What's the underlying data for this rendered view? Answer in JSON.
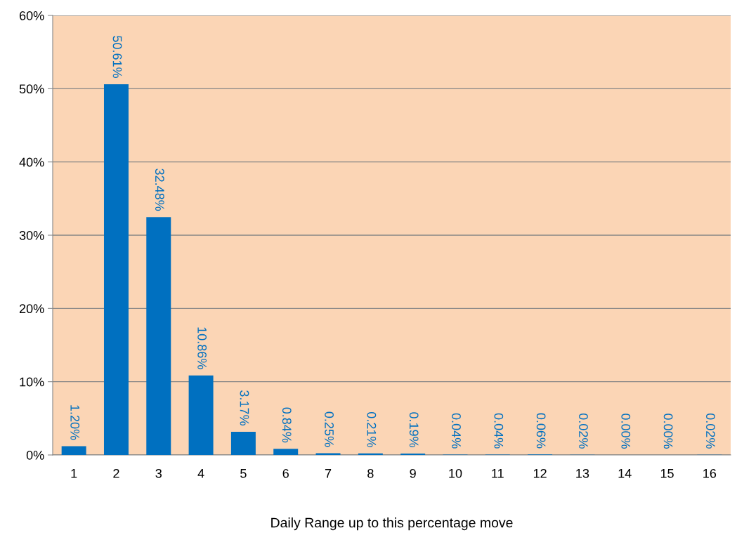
{
  "chart_data": {
    "type": "bar",
    "xlabel": "Daily Range up to this percentage move",
    "categories": [
      "1",
      "2",
      "3",
      "4",
      "5",
      "6",
      "7",
      "8",
      "9",
      "10",
      "11",
      "12",
      "13",
      "14",
      "15",
      "16"
    ],
    "values": [
      1.2,
      50.61,
      32.48,
      10.86,
      3.17,
      0.84,
      0.25,
      0.21,
      0.19,
      0.04,
      0.04,
      0.06,
      0.02,
      0.0,
      0.0,
      0.02
    ],
    "value_labels": [
      "1.20%",
      "50.61%",
      "32.48%",
      "10.86%",
      "3.17%",
      "0.84%",
      "0.25%",
      "0.21%",
      "0.19%",
      "0.04%",
      "0.04%",
      "0.06%",
      "0.02%",
      "0.00%",
      "0.00%",
      "0.02%"
    ],
    "color": "#0070c0",
    "ylim": [
      0,
      60
    ],
    "yticks": [
      {
        "value": 0,
        "label": "0%"
      },
      {
        "value": 10,
        "label": "10%"
      },
      {
        "value": 20,
        "label": "20%"
      },
      {
        "value": 30,
        "label": "30%"
      },
      {
        "value": 40,
        "label": "40%"
      },
      {
        "value": 50,
        "label": "50%"
      },
      {
        "value": 60,
        "label": "60%"
      }
    ],
    "grid": "y"
  }
}
